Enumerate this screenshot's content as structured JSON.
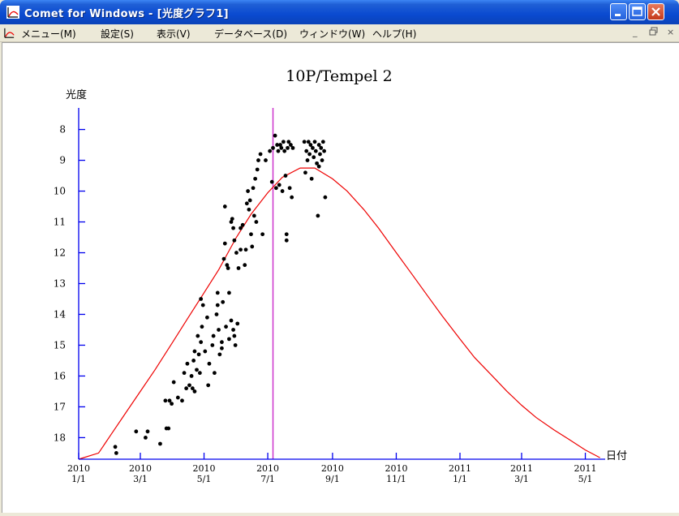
{
  "window": {
    "title": "Comet for Windows - [光度グラフ1]",
    "menu": [
      "メニュー(M)",
      "設定(S)",
      "表示(V)",
      "データベース(D)",
      "ウィンドウ(W)",
      "ヘルプ(H)"
    ],
    "controls": [
      "−",
      "▭",
      "✕"
    ],
    "mdi_controls": [
      "_",
      "🗗",
      "×"
    ]
  },
  "chart_data": {
    "type": "scatter",
    "title": "10P/Tempel 2",
    "ylabel": "光度",
    "xlabel": "日付",
    "y_inverted": true,
    "ylim": [
      18.7,
      7.3
    ],
    "xlim": [
      "2010-01-01",
      "2011-05-20"
    ],
    "yticks": [
      8,
      9,
      10,
      11,
      12,
      13,
      14,
      15,
      16,
      17,
      18
    ],
    "xticks": [
      {
        "date": "2010-01-01",
        "line1": "2010",
        "line2": "1/1"
      },
      {
        "date": "2010-03-01",
        "line1": "2010",
        "line2": "3/1"
      },
      {
        "date": "2010-05-01",
        "line1": "2010",
        "line2": "5/1"
      },
      {
        "date": "2010-07-01",
        "line1": "2010",
        "line2": "7/1"
      },
      {
        "date": "2010-09-01",
        "line1": "2010",
        "line2": "9/1"
      },
      {
        "date": "2010-11-01",
        "line1": "2010",
        "line2": "11/1"
      },
      {
        "date": "2011-01-01",
        "line1": "2011",
        "line2": "1/1"
      },
      {
        "date": "2011-03-01",
        "line1": "2011",
        "line2": "3/1"
      },
      {
        "date": "2011-05-01",
        "line1": "2011",
        "line2": "5/1"
      }
    ],
    "marker_line": {
      "date": "2010-07-06",
      "color": "#cc33cc"
    },
    "colors": {
      "axis": "#0000ee",
      "curve": "#ee0000",
      "points": "#000000"
    },
    "curve": [
      [
        "2010-01-01",
        18.7
      ],
      [
        "2010-01-20",
        18.5
      ],
      [
        "2010-02-01",
        17.9
      ],
      [
        "2010-02-15",
        17.2
      ],
      [
        "2010-03-01",
        16.5
      ],
      [
        "2010-03-15",
        15.8
      ],
      [
        "2010-04-01",
        14.9
      ],
      [
        "2010-04-15",
        14.15
      ],
      [
        "2010-05-01",
        13.3
      ],
      [
        "2010-05-15",
        12.55
      ],
      [
        "2010-06-01",
        11.5
      ],
      [
        "2010-06-15",
        10.75
      ],
      [
        "2010-07-01",
        10.05
      ],
      [
        "2010-07-15",
        9.55
      ],
      [
        "2010-08-01",
        9.25
      ],
      [
        "2010-08-15",
        9.25
      ],
      [
        "2010-09-01",
        9.6
      ],
      [
        "2010-09-15",
        10.0
      ],
      [
        "2010-10-01",
        10.6
      ],
      [
        "2010-10-15",
        11.2
      ],
      [
        "2010-11-01",
        12.0
      ],
      [
        "2010-11-15",
        12.65
      ],
      [
        "2010-12-01",
        13.4
      ],
      [
        "2010-12-15",
        14.05
      ],
      [
        "2011-01-01",
        14.8
      ],
      [
        "2011-01-15",
        15.4
      ],
      [
        "2011-02-01",
        16.0
      ],
      [
        "2011-02-15",
        16.5
      ],
      [
        "2011-03-01",
        16.95
      ],
      [
        "2011-03-15",
        17.35
      ],
      [
        "2011-04-01",
        17.75
      ],
      [
        "2011-04-15",
        18.05
      ],
      [
        "2011-05-01",
        18.4
      ],
      [
        "2011-05-15",
        18.65
      ]
    ],
    "points": [
      [
        "2010-02-05",
        18.3
      ],
      [
        "2010-02-06",
        18.5
      ],
      [
        "2010-02-25",
        17.8
      ],
      [
        "2010-03-06",
        18.0
      ],
      [
        "2010-03-08",
        17.8
      ],
      [
        "2010-03-20",
        18.2
      ],
      [
        "2010-03-26",
        17.7
      ],
      [
        "2010-03-28",
        17.7
      ],
      [
        "2010-03-25",
        16.8
      ],
      [
        "2010-03-29",
        16.8
      ],
      [
        "2010-03-31",
        16.9
      ],
      [
        "2010-04-02",
        16.2
      ],
      [
        "2010-04-06",
        16.7
      ],
      [
        "2010-04-10",
        16.8
      ],
      [
        "2010-04-12",
        15.9
      ],
      [
        "2010-04-14",
        16.4
      ],
      [
        "2010-04-15",
        15.6
      ],
      [
        "2010-04-17",
        16.3
      ],
      [
        "2010-04-19",
        16.0
      ],
      [
        "2010-04-20",
        16.4
      ],
      [
        "2010-04-21",
        15.5
      ],
      [
        "2010-04-22",
        16.5
      ],
      [
        "2010-04-22",
        15.2
      ],
      [
        "2010-04-24",
        15.8
      ],
      [
        "2010-04-25",
        14.7
      ],
      [
        "2010-04-27",
        15.9
      ],
      [
        "2010-04-26",
        15.3
      ],
      [
        "2010-04-28",
        14.9
      ],
      [
        "2010-04-28",
        13.5
      ],
      [
        "2010-04-29",
        14.4
      ],
      [
        "2010-04-30",
        13.7
      ],
      [
        "2010-05-02",
        15.2
      ],
      [
        "2010-05-04",
        14.1
      ],
      [
        "2010-05-05",
        16.3
      ],
      [
        "2010-05-06",
        15.6
      ],
      [
        "2010-05-09",
        15.0
      ],
      [
        "2010-05-10",
        14.7
      ],
      [
        "2010-05-11",
        15.9
      ],
      [
        "2010-05-13",
        14.0
      ],
      [
        "2010-05-14",
        13.7
      ],
      [
        "2010-05-14",
        13.3
      ],
      [
        "2010-05-15",
        14.5
      ],
      [
        "2010-05-16",
        15.3
      ],
      [
        "2010-05-18",
        15.1
      ],
      [
        "2010-05-18",
        14.9
      ],
      [
        "2010-05-19",
        13.6
      ],
      [
        "2010-05-20",
        12.2
      ],
      [
        "2010-05-21",
        11.7
      ],
      [
        "2010-05-22",
        14.4
      ],
      [
        "2010-05-23",
        12.4
      ],
      [
        "2010-05-24",
        12.5
      ],
      [
        "2010-05-25",
        14.8
      ],
      [
        "2010-05-25",
        13.3
      ],
      [
        "2010-05-27",
        14.2
      ],
      [
        "2010-05-27",
        11.0
      ],
      [
        "2010-05-28",
        10.9
      ],
      [
        "2010-05-29",
        11.2
      ],
      [
        "2010-05-29",
        14.5
      ],
      [
        "2010-05-30",
        11.6
      ],
      [
        "2010-05-30",
        14.7
      ],
      [
        "2010-05-31",
        15.0
      ],
      [
        "2010-06-01",
        12.0
      ],
      [
        "2010-06-02",
        14.3
      ],
      [
        "2010-06-03",
        12.5
      ],
      [
        "2010-06-05",
        11.9
      ],
      [
        "2010-06-05",
        11.2
      ],
      [
        "2010-06-07",
        11.1
      ],
      [
        "2010-06-09",
        12.4
      ],
      [
        "2010-06-10",
        11.9
      ],
      [
        "2010-06-11",
        10.4
      ],
      [
        "2010-06-12",
        10.0
      ],
      [
        "2010-06-13",
        10.6
      ],
      [
        "2010-06-14",
        10.3
      ],
      [
        "2010-06-15",
        11.4
      ],
      [
        "2010-06-16",
        11.8
      ],
      [
        "2010-06-17",
        9.9
      ],
      [
        "2010-06-18",
        10.8
      ],
      [
        "2010-06-19",
        9.6
      ],
      [
        "2010-06-20",
        11.0
      ],
      [
        "2010-06-21",
        9.3
      ],
      [
        "2010-06-22",
        9.0
      ],
      [
        "2010-06-24",
        8.8
      ],
      [
        "2010-06-26",
        11.4
      ],
      [
        "2010-05-21",
        10.5
      ],
      [
        "2010-06-29",
        9.0
      ],
      [
        "2010-07-03",
        8.7
      ],
      [
        "2010-07-05",
        9.7
      ],
      [
        "2010-07-06",
        8.6
      ],
      [
        "2010-07-08",
        8.2
      ],
      [
        "2010-07-09",
        9.9
      ],
      [
        "2010-07-10",
        8.5
      ],
      [
        "2010-07-11",
        8.7
      ],
      [
        "2010-07-12",
        9.8
      ],
      [
        "2010-07-13",
        8.5
      ],
      [
        "2010-07-14",
        8.6
      ],
      [
        "2010-07-15",
        10.0
      ],
      [
        "2010-07-16",
        8.4
      ],
      [
        "2010-07-17",
        8.7
      ],
      [
        "2010-07-18",
        9.5
      ],
      [
        "2010-07-19",
        11.4
      ],
      [
        "2010-07-19",
        11.6
      ],
      [
        "2010-07-20",
        8.6
      ],
      [
        "2010-07-21",
        8.4
      ],
      [
        "2010-07-22",
        9.9
      ],
      [
        "2010-07-23",
        8.5
      ],
      [
        "2010-07-24",
        10.2
      ],
      [
        "2010-07-25",
        8.6
      ],
      [
        "2010-08-05",
        8.4
      ],
      [
        "2010-08-06",
        9.4
      ],
      [
        "2010-08-07",
        8.7
      ],
      [
        "2010-08-08",
        9.0
      ],
      [
        "2010-08-09",
        8.4
      ],
      [
        "2010-08-10",
        8.8
      ],
      [
        "2010-08-11",
        8.5
      ],
      [
        "2010-08-12",
        9.6
      ],
      [
        "2010-08-13",
        8.6
      ],
      [
        "2010-08-14",
        8.9
      ],
      [
        "2010-08-15",
        8.4
      ],
      [
        "2010-08-16",
        8.7
      ],
      [
        "2010-08-17",
        9.1
      ],
      [
        "2010-08-18",
        10.8
      ],
      [
        "2010-08-19",
        8.5
      ],
      [
        "2010-08-19",
        9.2
      ],
      [
        "2010-08-20",
        8.8
      ],
      [
        "2010-08-21",
        8.6
      ],
      [
        "2010-08-22",
        9.0
      ],
      [
        "2010-08-23",
        8.4
      ],
      [
        "2010-08-24",
        8.7
      ],
      [
        "2010-08-25",
        10.2
      ]
    ]
  }
}
